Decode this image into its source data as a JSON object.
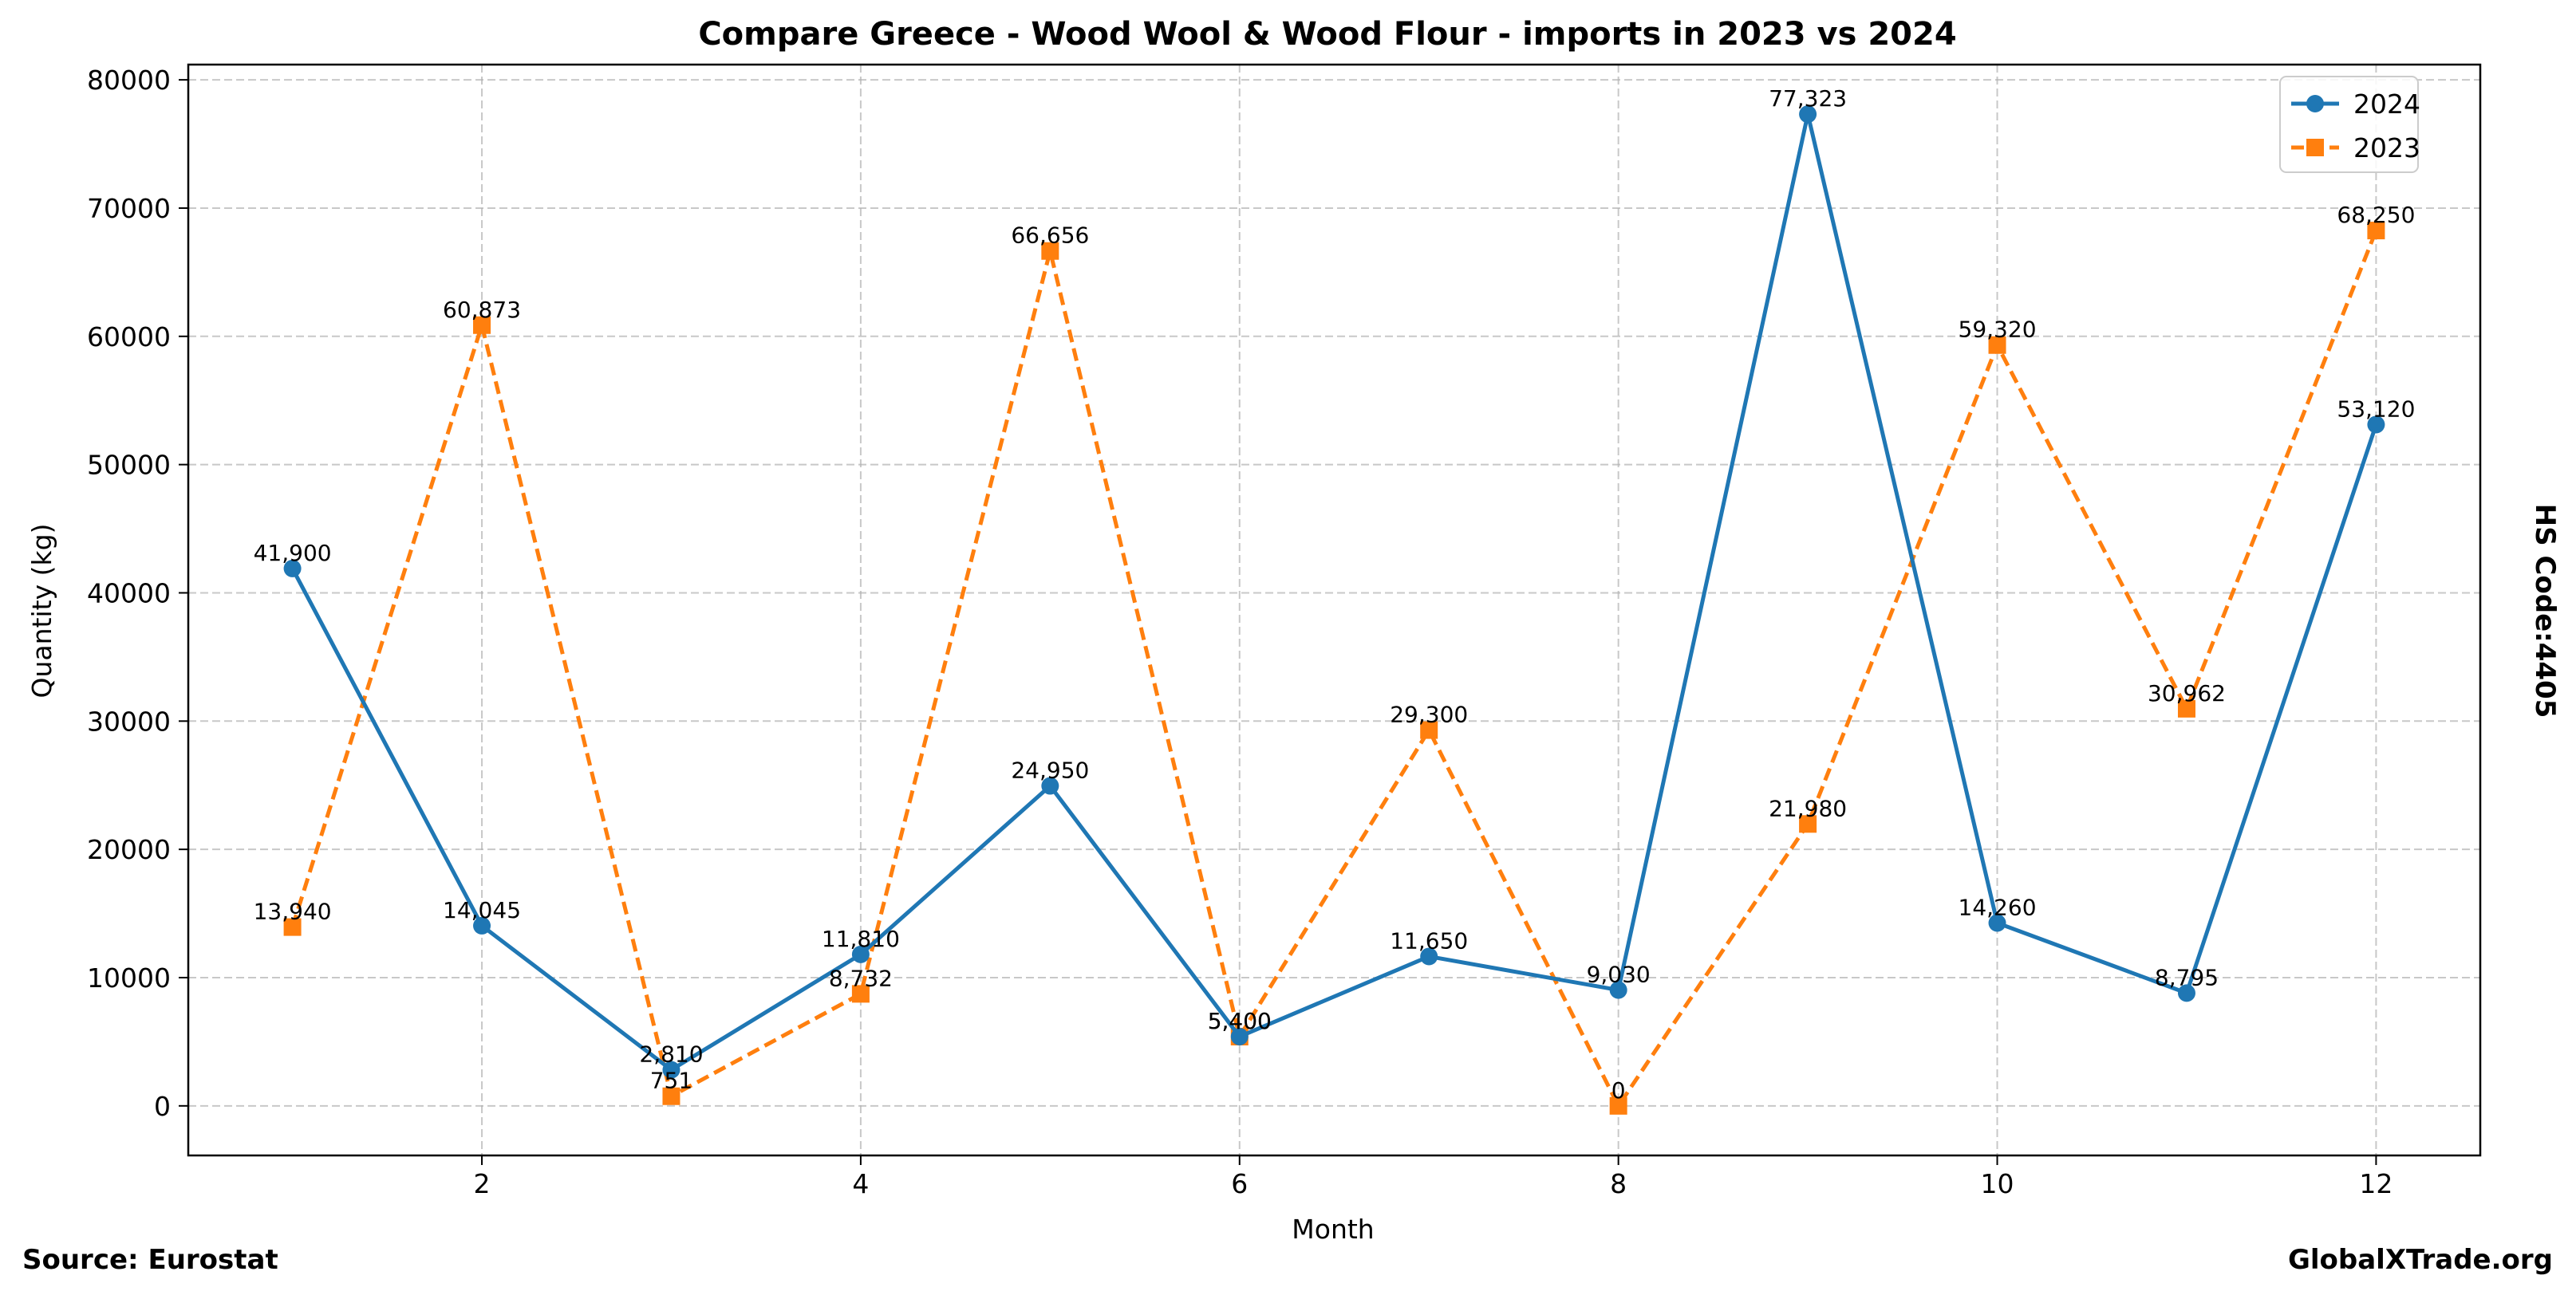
{
  "chart_data": {
    "type": "line",
    "title": "Compare Greece - Wood Wool & Wood Flour - imports in 2023 vs 2024",
    "xlabel": "Month",
    "ylabel": "Quantity (kg)",
    "x": [
      1,
      2,
      3,
      4,
      5,
      6,
      7,
      8,
      9,
      10,
      11,
      12
    ],
    "xlim": [
      0.45,
      12.55
    ],
    "ylim": [
      -3866,
      81189
    ],
    "xticks": [
      2,
      4,
      6,
      8,
      10,
      12
    ],
    "yticks": [
      0,
      10000,
      20000,
      30000,
      40000,
      50000,
      60000,
      70000,
      80000
    ],
    "grid": true,
    "legend_position": "top-right",
    "series": [
      {
        "name": "2024",
        "color": "#1f77b4",
        "line_style": "solid",
        "marker": "circle",
        "values": [
          41900,
          14045,
          2810,
          11810,
          24950,
          5400,
          11650,
          9030,
          77323,
          14260,
          8795,
          53120
        ],
        "labels": [
          "41,900",
          "14,045",
          "2,810",
          "11,810",
          "24,950",
          "5,400",
          "11,650",
          "9,030",
          "77,323",
          "14,260",
          "8,795",
          "53,120"
        ]
      },
      {
        "name": "2023",
        "color": "#ff7f0e",
        "line_style": "dashed",
        "marker": "square",
        "values": [
          13940,
          60873,
          751,
          8732,
          66656,
          5400,
          29300,
          0,
          21980,
          59320,
          30962,
          68250
        ],
        "labels": [
          "13,940",
          "60,873",
          "751",
          "8,732",
          "66,656",
          "5,400",
          "29,300",
          "0",
          "21,980",
          "59,320",
          "30,962",
          "68,250"
        ]
      }
    ]
  },
  "side_label": "HS Code:4405",
  "footer": {
    "source": "Source: Eurostat",
    "brand": "GlobalXTrade.org"
  }
}
